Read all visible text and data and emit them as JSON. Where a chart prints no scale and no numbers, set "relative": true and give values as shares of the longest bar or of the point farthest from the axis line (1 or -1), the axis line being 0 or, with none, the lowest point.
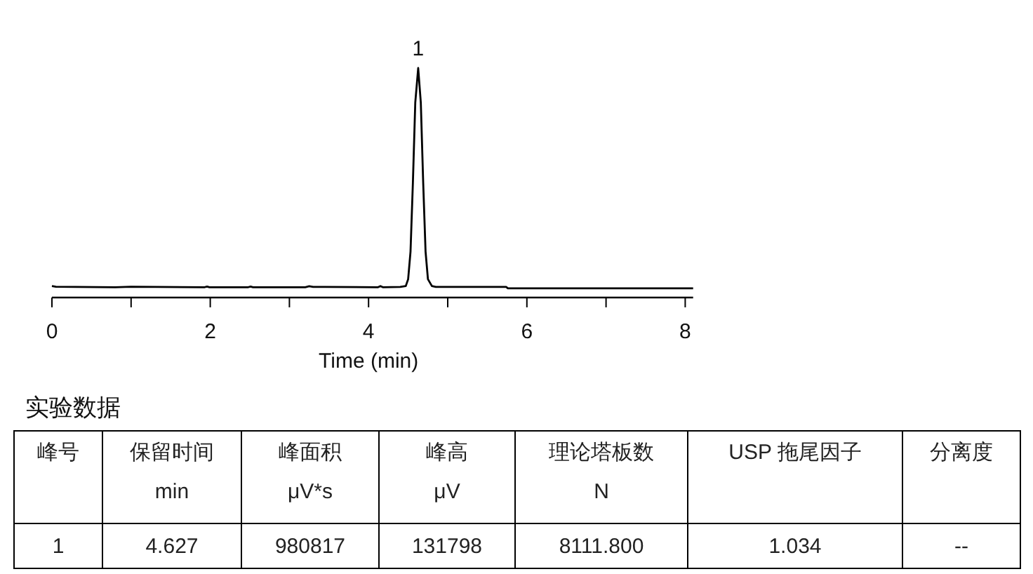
{
  "chart_data": [
    {
      "type": "line",
      "relative": true,
      "color": "#000000",
      "xlabel": "Time (min)",
      "xlim": [
        0,
        8.1
      ],
      "xticks": [
        0,
        {
          "value": 1,
          "label": null
        },
        2,
        {
          "value": 3,
          "label": null
        },
        4,
        {
          "value": 5,
          "label": null
        },
        6,
        {
          "value": 7,
          "label": null
        },
        8
      ],
      "x": [
        0,
        0.05,
        0.3,
        0.8,
        1.0,
        1.93,
        1.96,
        1.99,
        2.48,
        2.51,
        2.54,
        3.2,
        3.25,
        3.3,
        3.45,
        4.12,
        4.15,
        4.18,
        4.4,
        4.47,
        4.5,
        4.53,
        4.56,
        4.59,
        4.627,
        4.66,
        4.69,
        4.72,
        4.75,
        4.8,
        4.85,
        5.2,
        5.74,
        5.76,
        6.5,
        7.5,
        8.1
      ],
      "values": [
        0.05,
        0.047,
        0.046,
        0.045,
        0.047,
        0.045,
        0.048,
        0.045,
        0.045,
        0.048,
        0.045,
        0.045,
        0.049,
        0.046,
        0.046,
        0.045,
        0.05,
        0.045,
        0.046,
        0.05,
        0.08,
        0.2,
        0.5,
        0.85,
        1,
        0.85,
        0.5,
        0.2,
        0.08,
        0.05,
        0.046,
        0.046,
        0.046,
        0.04,
        0.04,
        0.04,
        0.04
      ],
      "annotations": [
        {
          "text": "1",
          "x": 4.627,
          "y": 1
        }
      ]
    },
    {
      "type": "other",
      "title": "实验数据",
      "categories": [
        "峰号",
        "保留时间",
        "峰面积",
        "峰高",
        "理论塔板数",
        "USP 拖尾因子",
        "分离度"
      ],
      "annotations": [
        null,
        "min",
        "μV*s",
        "μV",
        "N",
        null,
        null
      ],
      "value_labels": [
        "1",
        "4.627",
        "980817",
        "131798",
        "8111.800",
        "1.034",
        "--"
      ]
    }
  ]
}
